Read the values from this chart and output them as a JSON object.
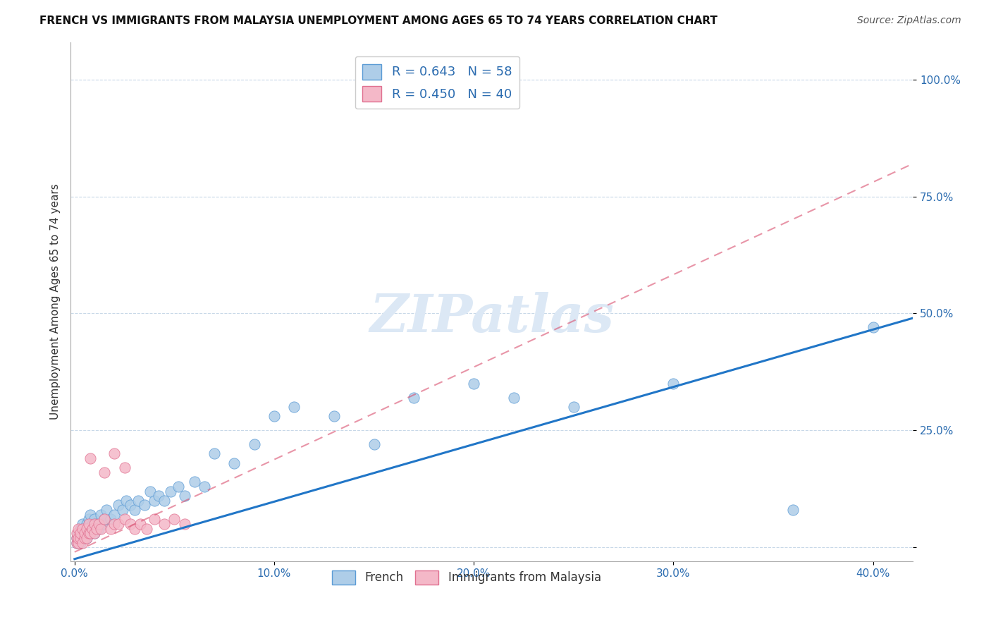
{
  "title": "FRENCH VS IMMIGRANTS FROM MALAYSIA UNEMPLOYMENT AMONG AGES 65 TO 74 YEARS CORRELATION CHART",
  "source": "Source: ZipAtlas.com",
  "ylabel": "Unemployment Among Ages 65 to 74 years",
  "xlim": [
    -0.002,
    0.42
  ],
  "ylim": [
    -0.03,
    1.08
  ],
  "xticks": [
    0.0,
    0.1,
    0.2,
    0.3,
    0.4
  ],
  "xtick_labels": [
    "0.0%",
    "10.0%",
    "20.0%",
    "30.0%",
    "40.0%"
  ],
  "yticks": [
    0.0,
    0.25,
    0.5,
    0.75,
    1.0
  ],
  "ytick_labels": [
    "",
    "25.0%",
    "50.0%",
    "75.0%",
    "100.0%"
  ],
  "french_color": "#aecde8",
  "french_edge_color": "#5b9bd5",
  "malaysia_color": "#f4b8c8",
  "malaysia_edge_color": "#e07090",
  "french_R": 0.643,
  "french_N": 58,
  "malaysia_R": 0.45,
  "malaysia_N": 40,
  "french_line_color": "#2176c7",
  "malaysia_line_color": "#d94f6e",
  "grid_color": "#c8d8e8",
  "watermark_text": "ZIPatlas",
  "french_x": [
    0.001,
    0.001,
    0.002,
    0.002,
    0.003,
    0.003,
    0.003,
    0.004,
    0.004,
    0.005,
    0.005,
    0.006,
    0.006,
    0.007,
    0.007,
    0.008,
    0.008,
    0.009,
    0.01,
    0.01,
    0.011,
    0.012,
    0.013,
    0.014,
    0.015,
    0.016,
    0.018,
    0.02,
    0.022,
    0.024,
    0.026,
    0.028,
    0.03,
    0.032,
    0.035,
    0.038,
    0.04,
    0.042,
    0.045,
    0.048,
    0.052,
    0.055,
    0.06,
    0.065,
    0.07,
    0.08,
    0.09,
    0.1,
    0.11,
    0.13,
    0.15,
    0.17,
    0.2,
    0.22,
    0.25,
    0.3,
    0.36,
    0.4
  ],
  "french_y": [
    0.01,
    0.02,
    0.02,
    0.03,
    0.01,
    0.03,
    0.04,
    0.02,
    0.05,
    0.02,
    0.04,
    0.02,
    0.05,
    0.03,
    0.06,
    0.04,
    0.07,
    0.05,
    0.03,
    0.06,
    0.05,
    0.04,
    0.07,
    0.05,
    0.06,
    0.08,
    0.06,
    0.07,
    0.09,
    0.08,
    0.1,
    0.09,
    0.08,
    0.1,
    0.09,
    0.12,
    0.1,
    0.11,
    0.1,
    0.12,
    0.13,
    0.11,
    0.14,
    0.13,
    0.2,
    0.18,
    0.22,
    0.28,
    0.3,
    0.28,
    0.22,
    0.32,
    0.35,
    0.32,
    0.3,
    0.35,
    0.08,
    0.47
  ],
  "malaysia_x": [
    0.001,
    0.001,
    0.001,
    0.002,
    0.002,
    0.002,
    0.003,
    0.003,
    0.004,
    0.004,
    0.005,
    0.005,
    0.006,
    0.006,
    0.007,
    0.007,
    0.008,
    0.009,
    0.01,
    0.01,
    0.011,
    0.012,
    0.013,
    0.015,
    0.018,
    0.02,
    0.022,
    0.025,
    0.028,
    0.03,
    0.033,
    0.036,
    0.04,
    0.045,
    0.05,
    0.055,
    0.02,
    0.025,
    0.015,
    0.008
  ],
  "malaysia_y": [
    0.01,
    0.02,
    0.03,
    0.01,
    0.02,
    0.04,
    0.02,
    0.03,
    0.01,
    0.04,
    0.02,
    0.03,
    0.04,
    0.02,
    0.03,
    0.05,
    0.03,
    0.04,
    0.03,
    0.05,
    0.04,
    0.05,
    0.04,
    0.06,
    0.04,
    0.05,
    0.05,
    0.06,
    0.05,
    0.04,
    0.05,
    0.04,
    0.06,
    0.05,
    0.06,
    0.05,
    0.2,
    0.17,
    0.16,
    0.19
  ],
  "dot_size": 120,
  "french_line_x0": 0.0,
  "french_line_y0": -0.025,
  "french_line_x1": 0.42,
  "french_line_y1": 0.49,
  "malaysia_line_x0": 0.0,
  "malaysia_line_y0": -0.01,
  "malaysia_line_x1": 0.42,
  "malaysia_line_y1": 0.82
}
